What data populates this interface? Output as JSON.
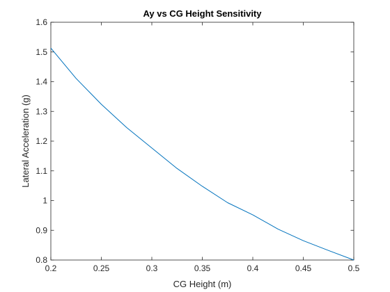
{
  "chart_data": {
    "type": "line",
    "title": "Ay vs CG Height Sensitivity",
    "xlabel": "CG Height (m)",
    "ylabel": "Lateral Acceleration (g)",
    "xlim": [
      0.2,
      0.5
    ],
    "ylim": [
      0.8,
      1.6
    ],
    "x_ticks": [
      "0.2",
      "0.25",
      "0.3",
      "0.35",
      "0.4",
      "0.45",
      "0.5"
    ],
    "y_ticks": [
      "0.8",
      "0.9",
      "1",
      "1.1",
      "1.2",
      "1.3",
      "1.4",
      "1.5",
      "1.6"
    ],
    "grid": false,
    "series": [
      {
        "color": "#0072BD",
        "x": [
          0.2,
          0.225,
          0.25,
          0.275,
          0.3,
          0.325,
          0.35,
          0.375,
          0.4,
          0.425,
          0.45,
          0.475,
          0.5
        ],
        "y": [
          1.513,
          1.411,
          1.324,
          1.246,
          1.177,
          1.108,
          1.048,
          0.993,
          0.952,
          0.904,
          0.865,
          0.832,
          0.8
        ]
      }
    ]
  }
}
